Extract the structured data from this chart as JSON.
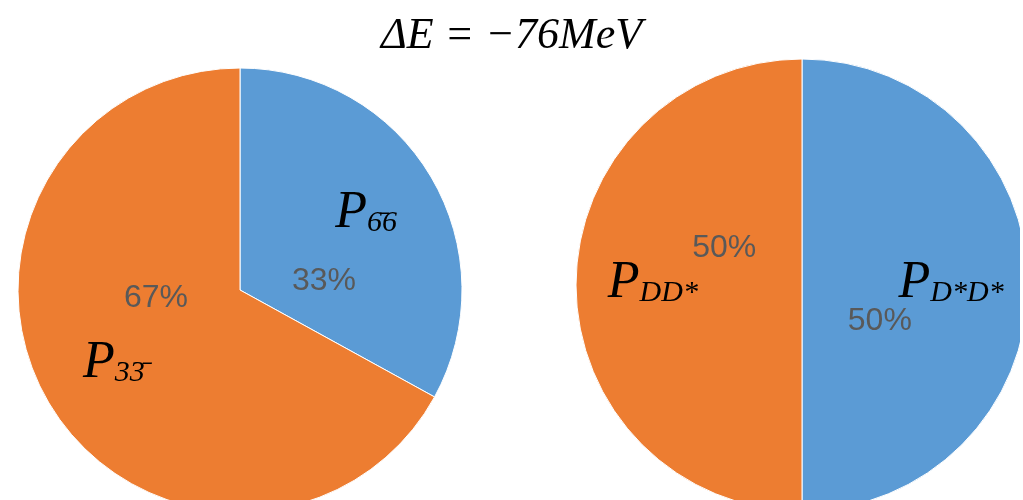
{
  "chart_data": [
    {
      "type": "pie",
      "title": "ΔE = −76MeV",
      "categories": [
        "P$_{6̄6}$",
        "P$_{33̄}$"
      ],
      "values": [
        33,
        67
      ],
      "colors": [
        "#5b9bd5",
        "#ed7d31"
      ],
      "value_labels": [
        "33%",
        "67%"
      ],
      "legend": false
    },
    {
      "type": "pie",
      "categories": [
        "P$_{D*D*}$",
        "P$_{DD*}$"
      ],
      "values": [
        50,
        50
      ],
      "colors": [
        "#5b9bd5",
        "#ed7d31"
      ],
      "value_labels": [
        "50%",
        "50%"
      ],
      "legend": false
    }
  ]
}
